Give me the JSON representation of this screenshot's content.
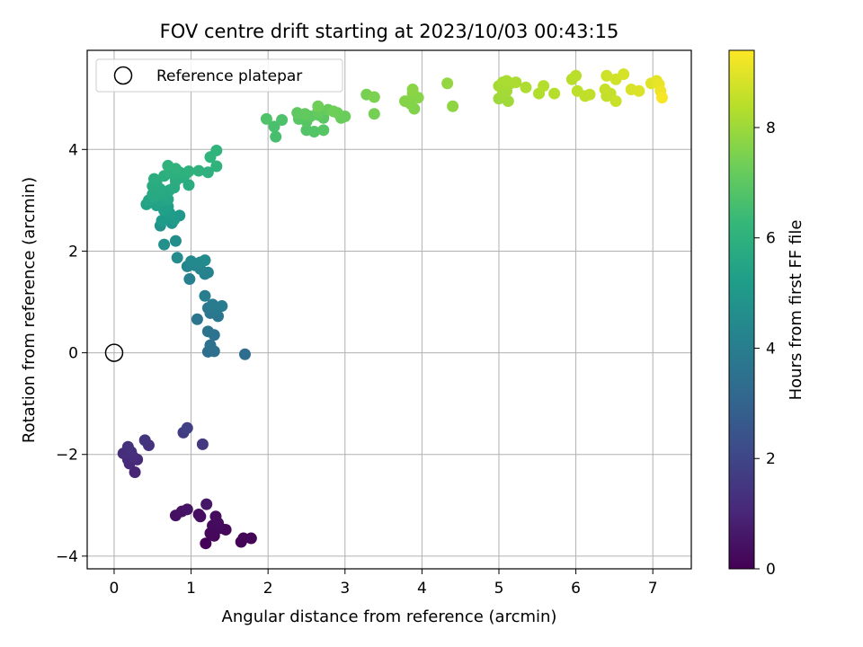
{
  "chart_data": {
    "type": "scatter",
    "title": "FOV centre drift starting at 2023/10/03 00:43:15",
    "xlabel": "Angular distance from reference (arcmin)",
    "ylabel": "Rotation from reference (arcmin)",
    "xlim": [
      -0.35,
      7.5
    ],
    "ylim": [
      -4.25,
      5.95
    ],
    "xticks": [
      0,
      1,
      2,
      3,
      4,
      5,
      6,
      7
    ],
    "yticks": [
      -4,
      -2,
      0,
      2,
      4
    ],
    "grid": true,
    "legend": {
      "position": "top-left",
      "entries": [
        "Reference platepar"
      ]
    },
    "reference_point": {
      "x": 0,
      "y": 0,
      "label": "Reference platepar"
    },
    "colorbar": {
      "label": "Hours from first FF file",
      "min": 0,
      "max": 9.4,
      "ticks": [
        0,
        2,
        4,
        6,
        8
      ],
      "colormap": "viridis"
    },
    "points": [
      [
        1.19,
        -3.75,
        0.05
      ],
      [
        1.65,
        -3.72,
        0.08
      ],
      [
        1.78,
        -3.65,
        0.1
      ],
      [
        1.68,
        -3.65,
        0.12
      ],
      [
        1.3,
        -3.6,
        0.15
      ],
      [
        1.25,
        -3.55,
        0.18
      ],
      [
        1.45,
        -3.48,
        0.2
      ],
      [
        1.38,
        -3.45,
        0.22
      ],
      [
        1.28,
        -3.4,
        0.25
      ],
      [
        1.35,
        -3.35,
        0.28
      ],
      [
        1.32,
        -3.22,
        0.3
      ],
      [
        1.12,
        -3.22,
        0.33
      ],
      [
        1.1,
        -3.18,
        0.36
      ],
      [
        0.8,
        -3.2,
        0.4
      ],
      [
        0.88,
        -3.12,
        0.45
      ],
      [
        0.95,
        -3.08,
        0.5
      ],
      [
        1.2,
        -2.98,
        0.55
      ],
      [
        0.27,
        -2.35,
        1.0
      ],
      [
        0.2,
        -2.18,
        1.05
      ],
      [
        0.18,
        -2.1,
        1.1
      ],
      [
        0.3,
        -2.1,
        1.15
      ],
      [
        0.25,
        -2.05,
        1.2
      ],
      [
        0.12,
        -1.98,
        1.25
      ],
      [
        0.22,
        -1.95,
        1.3
      ],
      [
        0.18,
        -1.85,
        1.35
      ],
      [
        0.45,
        -1.82,
        1.4
      ],
      [
        0.4,
        -1.72,
        1.45
      ],
      [
        1.15,
        -1.8,
        1.6
      ],
      [
        0.9,
        -1.57,
        1.7
      ],
      [
        0.95,
        -1.48,
        1.8
      ],
      [
        1.7,
        -0.03,
        3.35
      ],
      [
        1.22,
        0.02,
        3.4
      ],
      [
        1.3,
        0.03,
        3.45
      ],
      [
        1.25,
        0.15,
        3.5
      ],
      [
        1.3,
        0.35,
        3.55
      ],
      [
        1.22,
        0.42,
        3.6
      ],
      [
        1.08,
        0.66,
        3.65
      ],
      [
        1.35,
        0.72,
        3.7
      ],
      [
        1.25,
        0.78,
        3.75
      ],
      [
        1.22,
        0.88,
        3.8
      ],
      [
        1.32,
        0.85,
        3.85
      ],
      [
        1.4,
        0.92,
        3.9
      ],
      [
        1.28,
        0.95,
        3.95
      ],
      [
        1.18,
        1.12,
        4.0
      ],
      [
        0.98,
        1.45,
        4.1
      ],
      [
        1.18,
        1.55,
        4.15
      ],
      [
        1.22,
        1.58,
        4.2
      ],
      [
        1.12,
        1.65,
        4.25
      ],
      [
        0.95,
        1.7,
        4.3
      ],
      [
        1.05,
        1.72,
        4.35
      ],
      [
        1.12,
        1.78,
        4.4
      ],
      [
        1.0,
        1.8,
        4.45
      ],
      [
        1.18,
        1.82,
        4.5
      ],
      [
        0.82,
        1.87,
        4.55
      ],
      [
        0.8,
        2.2,
        4.6
      ],
      [
        0.65,
        2.13,
        4.7
      ],
      [
        0.6,
        2.5,
        4.8
      ],
      [
        0.75,
        2.55,
        4.9
      ],
      [
        0.68,
        2.65,
        5.0
      ],
      [
        0.85,
        2.7,
        5.05
      ],
      [
        0.78,
        2.62,
        5.1
      ],
      [
        0.62,
        2.6,
        5.15
      ],
      [
        0.72,
        2.75,
        5.2
      ],
      [
        0.65,
        2.8,
        5.25
      ],
      [
        0.7,
        2.88,
        5.3
      ],
      [
        0.55,
        2.9,
        5.35
      ],
      [
        0.42,
        2.92,
        5.4
      ],
      [
        0.6,
        2.97,
        5.45
      ],
      [
        0.45,
        3.0,
        5.5
      ],
      [
        0.7,
        3.02,
        5.55
      ],
      [
        0.52,
        3.05,
        5.6
      ],
      [
        0.62,
        3.1,
        5.62
      ],
      [
        0.5,
        3.12,
        5.64
      ],
      [
        0.68,
        3.15,
        5.66
      ],
      [
        0.55,
        3.18,
        5.68
      ],
      [
        0.72,
        3.2,
        5.7
      ],
      [
        0.6,
        3.22,
        5.72
      ],
      [
        0.5,
        3.28,
        5.74
      ],
      [
        0.78,
        3.25,
        5.76
      ],
      [
        0.97,
        3.3,
        5.78
      ],
      [
        0.55,
        3.35,
        5.8
      ],
      [
        0.8,
        3.38,
        5.82
      ],
      [
        0.52,
        3.42,
        5.84
      ],
      [
        0.88,
        3.45,
        5.86
      ],
      [
        0.65,
        3.48,
        5.88
      ],
      [
        0.92,
        3.5,
        5.9
      ],
      [
        0.75,
        3.52,
        5.92
      ],
      [
        0.85,
        3.55,
        5.94
      ],
      [
        1.22,
        3.55,
        5.96
      ],
      [
        1.1,
        3.58,
        5.98
      ],
      [
        0.97,
        3.57,
        6.0
      ],
      [
        0.8,
        3.62,
        6.02
      ],
      [
        1.33,
        3.67,
        6.04
      ],
      [
        0.7,
        3.68,
        6.06
      ],
      [
        1.25,
        3.85,
        6.08
      ],
      [
        1.33,
        3.98,
        6.1
      ],
      [
        2.1,
        4.25,
        6.6
      ],
      [
        2.08,
        4.45,
        6.65
      ],
      [
        2.18,
        4.58,
        6.7
      ],
      [
        1.98,
        4.6,
        6.75
      ],
      [
        2.5,
        4.38,
        6.8
      ],
      [
        2.6,
        4.35,
        6.85
      ],
      [
        2.72,
        4.38,
        6.88
      ],
      [
        2.5,
        4.55,
        6.9
      ],
      [
        2.4,
        4.6,
        6.93
      ],
      [
        2.72,
        4.62,
        6.96
      ],
      [
        2.55,
        4.65,
        7.0
      ],
      [
        2.65,
        4.68,
        7.03
      ],
      [
        2.38,
        4.72,
        7.06
      ],
      [
        2.48,
        4.7,
        7.1
      ],
      [
        2.65,
        4.75,
        7.13
      ],
      [
        2.78,
        4.78,
        7.16
      ],
      [
        2.95,
        4.62,
        7.2
      ],
      [
        3.0,
        4.65,
        7.23
      ],
      [
        2.9,
        4.72,
        7.26
      ],
      [
        2.85,
        4.75,
        7.3
      ],
      [
        2.65,
        4.85,
        7.33
      ],
      [
        3.38,
        4.7,
        7.4
      ],
      [
        3.28,
        5.08,
        7.45
      ],
      [
        3.38,
        5.03,
        7.5
      ],
      [
        3.9,
        4.8,
        7.6
      ],
      [
        3.85,
        4.9,
        7.62
      ],
      [
        3.78,
        4.95,
        7.65
      ],
      [
        3.95,
        5.02,
        7.68
      ],
      [
        3.88,
        5.1,
        7.7
      ],
      [
        3.88,
        5.18,
        7.72
      ],
      [
        4.4,
        4.85,
        7.8
      ],
      [
        4.33,
        5.3,
        7.85
      ],
      [
        5.0,
        5.0,
        8.0
      ],
      [
        5.12,
        4.95,
        8.05
      ],
      [
        5.05,
        5.1,
        8.08
      ],
      [
        5.1,
        5.15,
        8.1
      ],
      [
        5.0,
        5.25,
        8.12
      ],
      [
        5.15,
        5.3,
        8.15
      ],
      [
        5.05,
        5.32,
        8.17
      ],
      [
        5.1,
        5.35,
        8.2
      ],
      [
        5.22,
        5.32,
        8.22
      ],
      [
        5.35,
        5.22,
        8.25
      ],
      [
        5.52,
        5.1,
        8.3
      ],
      [
        5.58,
        5.25,
        8.33
      ],
      [
        5.72,
        5.1,
        8.36
      ],
      [
        5.95,
        5.38,
        8.4
      ],
      [
        6.0,
        5.45,
        8.42
      ],
      [
        6.02,
        5.15,
        8.45
      ],
      [
        6.12,
        5.05,
        8.5
      ],
      [
        6.18,
        5.08,
        8.52
      ],
      [
        6.4,
        5.05,
        8.55
      ],
      [
        6.45,
        5.1,
        8.58
      ],
      [
        6.38,
        5.18,
        8.6
      ],
      [
        6.52,
        4.95,
        8.65
      ],
      [
        6.4,
        5.45,
        8.7
      ],
      [
        6.52,
        5.38,
        8.75
      ],
      [
        6.62,
        5.48,
        8.8
      ],
      [
        6.72,
        5.18,
        8.85
      ],
      [
        6.82,
        5.15,
        8.9
      ],
      [
        6.98,
        5.3,
        8.95
      ],
      [
        7.05,
        5.35,
        9.0
      ],
      [
        7.08,
        5.28,
        9.1
      ],
      [
        7.1,
        5.15,
        9.2
      ],
      [
        7.12,
        5.02,
        9.3
      ]
    ]
  }
}
